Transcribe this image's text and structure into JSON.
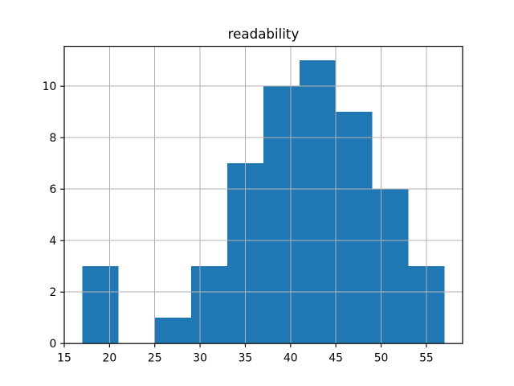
{
  "chart_data": {
    "type": "bar",
    "subtype": "histogram",
    "title": "readability",
    "xlabel": "",
    "ylabel": "",
    "bin_edges": [
      17,
      21,
      25,
      29,
      33,
      37,
      41,
      45,
      49,
      53,
      57
    ],
    "values": [
      3,
      0,
      1,
      3,
      7,
      10,
      11,
      9,
      6,
      3
    ],
    "xlim": [
      15,
      59
    ],
    "ylim": [
      0,
      11.55
    ],
    "xticks": [
      15,
      20,
      25,
      30,
      35,
      40,
      45,
      50,
      55
    ],
    "yticks": [
      0,
      2,
      4,
      6,
      8,
      10
    ],
    "grid": true,
    "grid_over_bars": true,
    "legend": false,
    "bar_color": "#1f77b4",
    "grid_color": "#b0b0b0",
    "spine_color": "#000000",
    "tick_color": "#000000",
    "text_color": "#000000",
    "background_color": "#ffffff"
  }
}
